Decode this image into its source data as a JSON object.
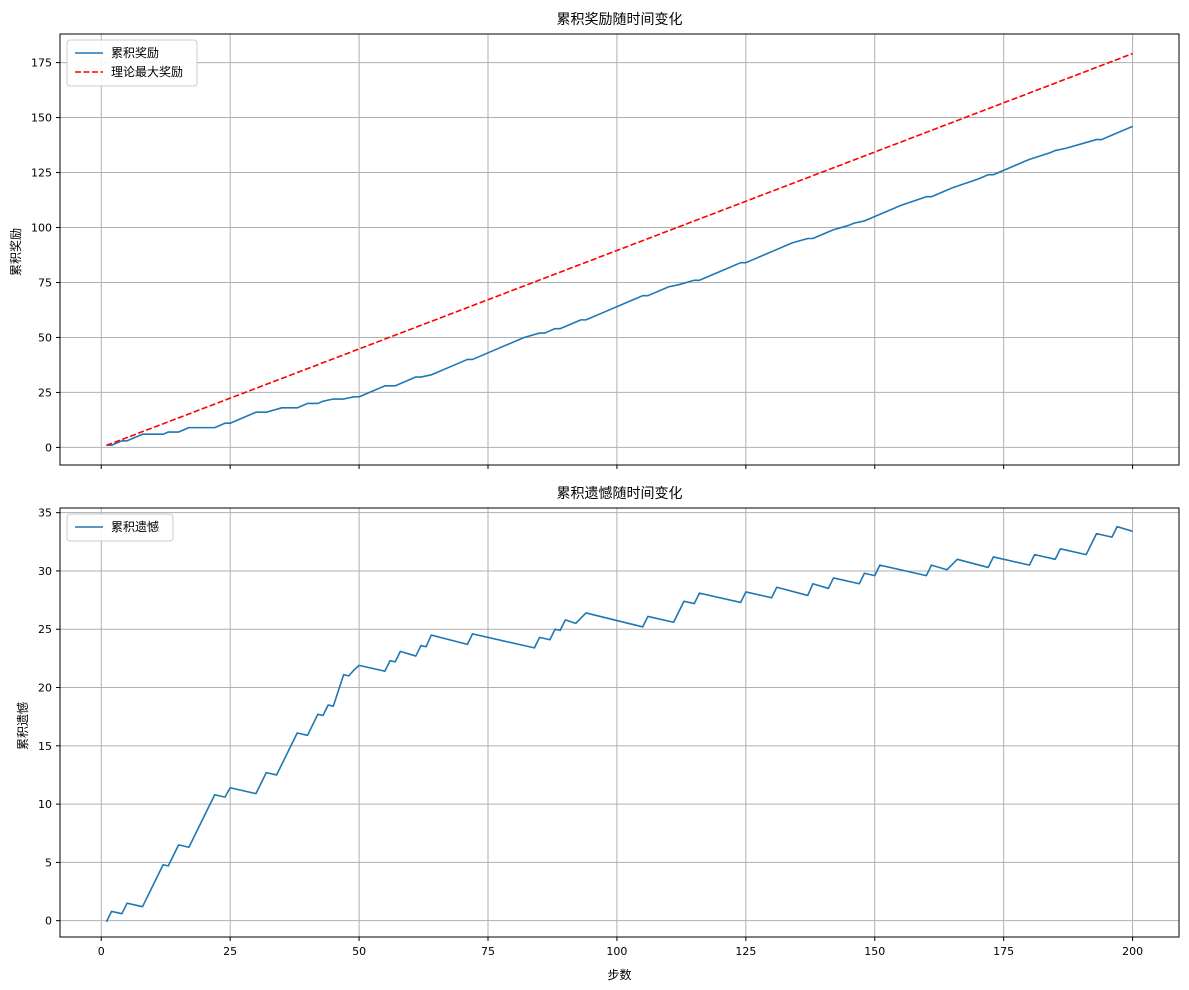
{
  "chart_data": [
    {
      "type": "line",
      "title": "累积奖励随时间变化",
      "xlabel": "",
      "ylabel": "累积奖励",
      "xlim": [
        -8,
        209
      ],
      "ylim": [
        -8,
        188
      ],
      "xticks": [
        0,
        25,
        50,
        75,
        100,
        125,
        150,
        175,
        200
      ],
      "yticks": [
        0,
        25,
        50,
        75,
        100,
        125,
        150,
        175
      ],
      "xtick_labels_visible": false,
      "grid": true,
      "legend_position": "upper-left",
      "series": [
        {
          "name": "累积奖励",
          "color": "#1f77b4",
          "dash": "solid",
          "x": [
            1,
            2,
            3,
            4,
            5,
            6,
            8,
            12,
            13,
            15,
            17,
            22,
            24,
            25,
            30,
            32,
            35,
            38,
            40,
            42,
            43,
            45,
            47,
            49,
            50,
            53,
            55,
            57,
            58,
            61,
            62,
            64,
            68,
            71,
            72,
            77,
            82,
            85,
            86,
            88,
            89,
            90,
            93,
            94,
            98,
            102,
            105,
            106,
            110,
            112,
            115,
            116,
            120,
            124,
            125,
            129,
            130,
            134,
            137,
            138,
            141,
            142,
            145,
            146,
            148,
            149,
            150,
            155,
            160,
            161,
            164,
            165,
            170,
            172,
            173,
            176,
            179,
            180,
            184,
            185,
            187,
            193,
            194,
            196,
            197,
            200
          ],
          "y": [
            1,
            1,
            2,
            3,
            3,
            4,
            6,
            6,
            7,
            7,
            9,
            9,
            11,
            11,
            16,
            16,
            18,
            18,
            20,
            20,
            21,
            22,
            22,
            23,
            23,
            26,
            28,
            28,
            29,
            32,
            32,
            33,
            37,
            40,
            40,
            45,
            50,
            52,
            52,
            54,
            54,
            55,
            58,
            58,
            62,
            66,
            69,
            69,
            73,
            74,
            76,
            76,
            80,
            84,
            84,
            88,
            89,
            93,
            95,
            95,
            98,
            99,
            101,
            102,
            103,
            104,
            105,
            110,
            114,
            114,
            117,
            118,
            122,
            124,
            124,
            127,
            130,
            131,
            134,
            135,
            136,
            140,
            140,
            142,
            143,
            146
          ]
        },
        {
          "name": "理论最大奖励",
          "color": "#ff0000",
          "dash": "dashed",
          "x": [
            1,
            200
          ],
          "y": [
            0.9,
            179.1
          ]
        }
      ]
    },
    {
      "type": "line",
      "title": "累积遗憾随时间变化",
      "xlabel": "步数",
      "ylabel": "累积遗憾",
      "xlim": [
        -8,
        209
      ],
      "ylim": [
        -1.4,
        35.4
      ],
      "xticks": [
        0,
        25,
        50,
        75,
        100,
        125,
        150,
        175,
        200
      ],
      "yticks": [
        0,
        5,
        10,
        15,
        20,
        25,
        30,
        35
      ],
      "xtick_labels_visible": true,
      "grid": true,
      "legend_position": "upper-left",
      "series": [
        {
          "name": "累积遗憾",
          "color": "#1f77b4",
          "dash": "solid",
          "x": [
            1,
            2,
            4,
            5,
            8,
            12,
            13,
            15,
            17,
            22,
            24,
            25,
            30,
            32,
            34,
            38,
            40,
            42,
            43,
            44,
            45,
            47,
            48,
            49,
            50,
            55,
            56,
            57,
            58,
            61,
            62,
            63,
            64,
            71,
            72,
            84,
            85,
            87,
            88,
            89,
            90,
            92,
            94,
            105,
            106,
            111,
            113,
            115,
            116,
            124,
            125,
            130,
            131,
            137,
            138,
            141,
            142,
            147,
            148,
            150,
            151,
            160,
            161,
            164,
            166,
            172,
            173,
            180,
            181,
            185,
            186,
            191,
            193,
            196,
            197,
            200
          ],
          "y": [
            -0.1,
            0.8,
            0.6,
            1.5,
            1.2,
            4.8,
            4.7,
            6.5,
            6.3,
            10.8,
            10.6,
            11.4,
            10.9,
            12.7,
            12.5,
            16.1,
            15.9,
            17.7,
            17.6,
            18.5,
            18.4,
            21.1,
            21.0,
            21.5,
            21.9,
            21.4,
            22.3,
            22.2,
            23.1,
            22.7,
            23.6,
            23.5,
            24.5,
            23.7,
            24.6,
            23.4,
            24.3,
            24.1,
            25.0,
            24.9,
            25.8,
            25.5,
            26.4,
            25.2,
            26.1,
            25.6,
            27.4,
            27.2,
            28.1,
            27.3,
            28.2,
            27.7,
            28.6,
            27.9,
            28.9,
            28.5,
            29.4,
            28.9,
            29.8,
            29.6,
            30.5,
            29.6,
            30.5,
            30.1,
            31.0,
            30.3,
            31.2,
            30.5,
            31.4,
            31.0,
            31.9,
            31.4,
            33.2,
            32.9,
            33.8,
            33.4
          ]
        }
      ]
    }
  ]
}
